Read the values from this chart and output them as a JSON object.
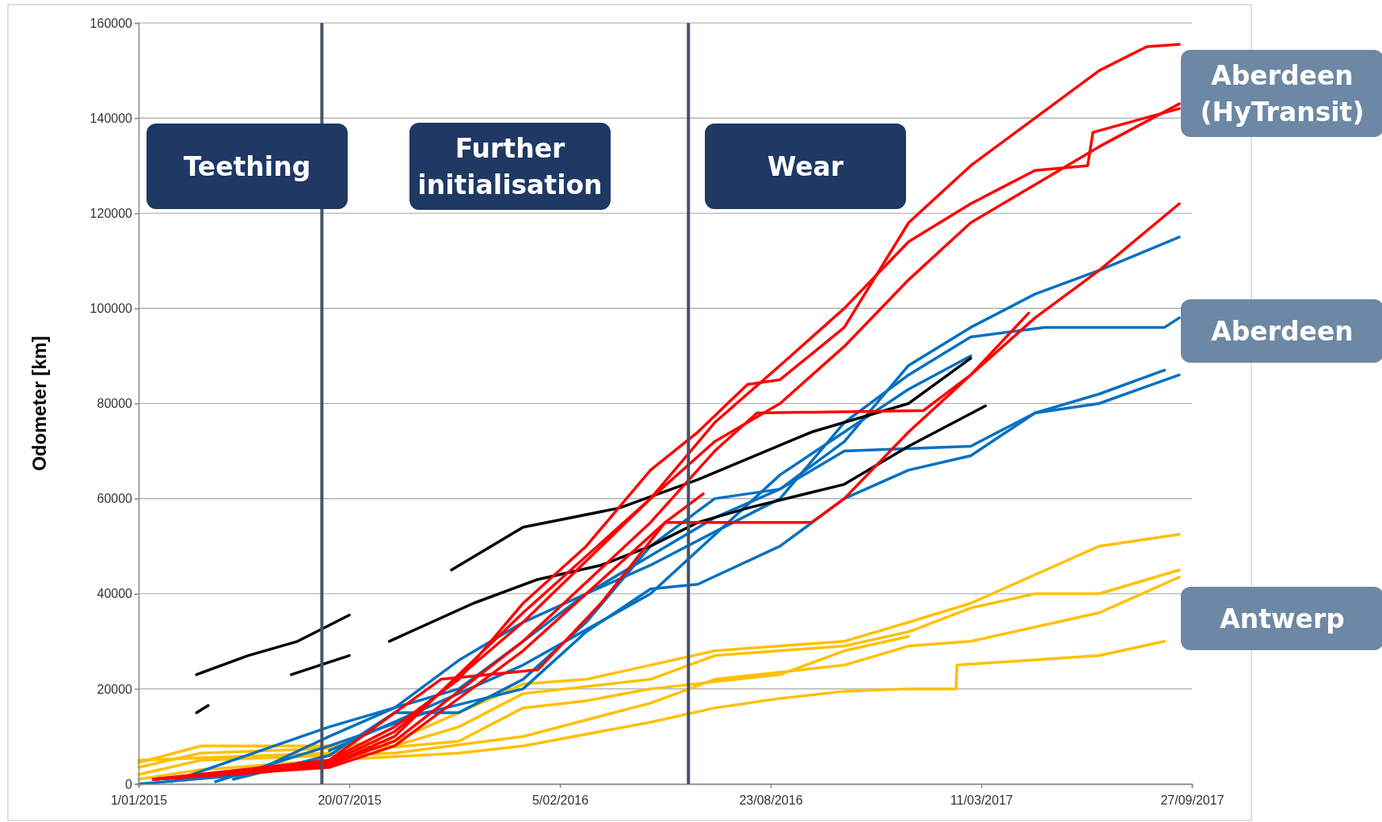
{
  "chart_data": {
    "type": "line",
    "ylabel": "Odometer [km]",
    "xlim": [
      "2015-01-01",
      "2017-09-27"
    ],
    "xticks": [
      {
        "value": "2015-01-01",
        "label": "1/01/2015"
      },
      {
        "value": "2015-07-20",
        "label": "20/07/2015"
      },
      {
        "value": "2016-02-05",
        "label": "5/02/2016"
      },
      {
        "value": "2016-08-23",
        "label": "23/08/2016"
      },
      {
        "value": "2017-03-11",
        "label": "11/03/2017"
      },
      {
        "value": "2017-09-27",
        "label": "27/09/2017"
      }
    ],
    "ylim": [
      0,
      160000
    ],
    "yticks": [
      0,
      20000,
      40000,
      60000,
      80000,
      100000,
      120000,
      140000,
      160000
    ],
    "grid": "y",
    "line_style": "solid",
    "ref_lines": [
      {
        "axis": "x",
        "value": "2015-06-24",
        "color": "#44546a"
      },
      {
        "axis": "x",
        "value": "2016-06-06",
        "color": "#44546a"
      }
    ],
    "annotations": [
      "Teething",
      "Further initialisation",
      "Wear",
      "Aberdeen (HyTransit)",
      "Aberdeen",
      "Antwerp"
    ],
    "series": [
      {
        "color": "#ffc000",
        "x": [
          "2015-01-01",
          "2015-03-01",
          "2015-07-01",
          "2015-09-01",
          "2015-11-01",
          "2016-01-01",
          "2016-03-01",
          "2016-05-01",
          "2016-07-01",
          "2016-11-01",
          "2017-01-01",
          "2017-03-01",
          "2017-05-01",
          "2017-07-01",
          "2017-09-15"
        ],
        "values": [
          4500,
          8000,
          8000,
          9000,
          15000,
          21000,
          22000,
          25000,
          28000,
          30000,
          34000,
          38000,
          44000,
          50000,
          52500
        ]
      },
      {
        "color": "#ffc000",
        "x": [
          "2015-01-01",
          "2015-03-01",
          "2015-09-01",
          "2015-11-01",
          "2016-01-01",
          "2016-05-01",
          "2016-07-01",
          "2016-11-01",
          "2017-01-01",
          "2017-03-01",
          "2017-05-01",
          "2017-07-01",
          "2017-09-15"
        ],
        "values": [
          3500,
          6500,
          8000,
          12000,
          19000,
          22000,
          27000,
          29000,
          32000,
          37000,
          40000,
          40000,
          45000
        ]
      },
      {
        "color": "#ffc000",
        "x": [
          "2015-01-01",
          "2015-03-01",
          "2015-09-01",
          "2016-01-01",
          "2016-05-01",
          "2016-07-01",
          "2016-11-01",
          "2017-01-01",
          "2017-03-01",
          "2017-05-01",
          "2017-07-01",
          "2017-09-15"
        ],
        "values": [
          2000,
          5000,
          6500,
          10000,
          17000,
          22000,
          25000,
          29000,
          30000,
          33000,
          36000,
          43500
        ]
      },
      {
        "color": "#ffc000",
        "x": [
          "2015-01-01",
          "2015-03-01",
          "2015-07-01",
          "2015-11-01",
          "2016-01-01",
          "2016-05-01",
          "2016-07-01",
          "2016-09-01",
          "2016-11-01",
          "2017-01-01",
          "2017-02-15",
          "2017-02-16",
          "2017-07-01",
          "2017-09-01"
        ],
        "values": [
          1000,
          3000,
          5000,
          6500,
          8000,
          13000,
          16000,
          18000,
          19500,
          20000,
          20000,
          25000,
          27000,
          30000
        ]
      },
      {
        "color": "#ffc000",
        "x": [
          "2015-01-01",
          "2015-07-01",
          "2015-11-01",
          "2016-01-01",
          "2016-03-01",
          "2016-05-01",
          "2016-07-01",
          "2016-09-01",
          "2016-11-01",
          "2017-01-01"
        ],
        "values": [
          5000,
          6500,
          9000,
          16000,
          17500,
          20000,
          21500,
          23000,
          28000,
          31000
        ]
      },
      {
        "color": "#0070c0",
        "x": [
          "2015-01-01",
          "2015-04-15",
          "2015-07-01",
          "2015-09-01",
          "2015-11-01",
          "2016-01-01",
          "2016-03-01",
          "2016-05-01",
          "2016-07-01",
          "2016-09-01",
          "2016-11-01",
          "2017-01-01",
          "2017-03-01",
          "2017-05-01",
          "2017-07-01",
          "2017-09-15"
        ],
        "values": [
          0,
          2000,
          10000,
          16000,
          26000,
          34000,
          40000,
          48000,
          56000,
          62000,
          72000,
          88000,
          96000,
          103000,
          108000,
          115000
        ]
      },
      {
        "color": "#0070c0",
        "x": [
          "2015-02-01",
          "2015-07-01",
          "2015-11-01",
          "2016-01-01",
          "2016-03-01",
          "2016-05-01",
          "2016-07-01",
          "2016-09-01",
          "2016-11-01",
          "2017-01-01",
          "2017-03-01",
          "2017-05-10",
          "2017-09-01",
          "2017-09-15"
        ],
        "values": [
          500,
          12000,
          20000,
          30000,
          40000,
          46000,
          53000,
          60000,
          76000,
          86000,
          94000,
          96000,
          96000,
          98000
        ]
      },
      {
        "color": "#0070c0",
        "x": [
          "2015-03-15",
          "2015-07-01",
          "2015-10-01",
          "2016-01-01",
          "2016-03-01",
          "2016-05-01",
          "2016-06-15",
          "2016-09-01",
          "2016-11-01",
          "2017-01-01",
          "2017-03-01",
          "2017-05-01",
          "2017-07-01",
          "2017-09-15"
        ],
        "values": [
          500,
          8000,
          15000,
          20000,
          32000,
          41000,
          42000,
          50000,
          60000,
          66000,
          69000,
          78000,
          80000,
          86000
        ]
      },
      {
        "color": "#0070c0",
        "x": [
          "2015-04-01",
          "2015-07-01",
          "2015-09-01",
          "2015-11-01",
          "2016-01-01",
          "2016-03-01",
          "2016-05-01",
          "2016-07-01",
          "2016-09-01",
          "2016-11-01",
          "2017-03-01",
          "2017-05-01",
          "2017-07-01",
          "2017-09-01"
        ],
        "values": [
          1000,
          6000,
          15000,
          15000,
          22000,
          34000,
          50000,
          60000,
          62000,
          70000,
          71000,
          78000,
          82000,
          87000
        ]
      },
      {
        "color": "#0070c0",
        "x": [
          "2015-07-01",
          "2016-01-01",
          "2016-05-01",
          "2016-09-01",
          "2016-11-01",
          "2017-01-01",
          "2017-03-01"
        ],
        "values": [
          7000,
          25000,
          40000,
          65000,
          74000,
          83000,
          90000
        ]
      },
      {
        "color": "#000000",
        "x": [
          "2015-02-25",
          "2015-04-15",
          "2015-06-01",
          "2015-07-20"
        ],
        "values": [
          23000,
          27000,
          30000,
          35500
        ]
      },
      {
        "color": "#000000",
        "x": [
          "2015-02-25",
          "2015-03-08"
        ],
        "values": [
          15000,
          16500
        ]
      },
      {
        "color": "#000000",
        "x": [
          "2015-05-26",
          "2015-07-20"
        ],
        "values": [
          23000,
          27000
        ]
      },
      {
        "color": "#000000",
        "x": [
          "2015-08-27",
          "2015-11-15",
          "2016-01-15",
          "2016-03-15",
          "2016-05-01",
          "2016-06-15",
          "2016-08-01",
          "2016-11-01",
          "2017-01-01",
          "2017-03-15"
        ],
        "values": [
          30000,
          38000,
          43000,
          46000,
          50000,
          55000,
          58000,
          63000,
          71000,
          79500
        ]
      },
      {
        "color": "#000000",
        "x": [
          "2015-10-25",
          "2016-01-01",
          "2016-04-01",
          "2016-06-15",
          "2016-10-01",
          "2017-01-01",
          "2017-03-01"
        ],
        "values": [
          45000,
          54000,
          58000,
          64000,
          74000,
          80000,
          89500
        ]
      },
      {
        "color": "#ff0000",
        "x": [
          "2015-01-15",
          "2015-05-01",
          "2015-07-01",
          "2015-09-01",
          "2015-11-01",
          "2016-01-01",
          "2016-03-01",
          "2016-05-01",
          "2016-06-15",
          "2016-08-01",
          "2016-09-01",
          "2016-11-01",
          "2017-01-01",
          "2017-03-01",
          "2017-05-01",
          "2017-07-01",
          "2017-08-15",
          "2017-09-15"
        ],
        "values": [
          1000,
          2500,
          5000,
          12000,
          22000,
          38000,
          50000,
          66000,
          74000,
          84000,
          85000,
          96000,
          118000,
          130000,
          140000,
          150000,
          155000,
          155500
        ]
      },
      {
        "color": "#ff0000",
        "x": [
          "2015-01-15",
          "2015-07-01",
          "2015-09-01",
          "2016-01-01",
          "2016-05-01",
          "2016-07-01",
          "2016-09-01",
          "2016-11-01",
          "2017-01-01",
          "2017-03-01",
          "2017-05-01",
          "2017-07-01",
          "2017-09-15"
        ],
        "values": [
          1000,
          4500,
          11000,
          34000,
          60000,
          72000,
          80000,
          92000,
          106000,
          118000,
          126000,
          134000,
          143000
        ]
      },
      {
        "color": "#ff0000",
        "x": [
          "2015-01-15",
          "2015-07-01",
          "2015-09-01",
          "2016-01-01",
          "2016-05-01",
          "2016-07-01",
          "2016-09-01",
          "2016-11-01",
          "2017-01-01",
          "2017-03-01",
          "2017-05-01",
          "2017-06-20",
          "2017-06-25",
          "2017-09-15"
        ],
        "values": [
          1000,
          4000,
          10000,
          36000,
          60000,
          76000,
          88000,
          100000,
          114000,
          122000,
          129000,
          130000,
          137000,
          142000
        ]
      },
      {
        "color": "#ff0000",
        "x": [
          "2015-01-15",
          "2015-07-01",
          "2015-09-01",
          "2016-01-01",
          "2016-05-01",
          "2016-07-01",
          "2016-08-10",
          "2017-01-15",
          "2017-03-01",
          "2017-04-25"
        ],
        "values": [
          1000,
          4000,
          9000,
          30000,
          55000,
          70000,
          78000,
          78500,
          86000,
          99000
        ]
      },
      {
        "color": "#ff0000",
        "x": [
          "2015-01-15",
          "2015-07-01",
          "2015-09-01",
          "2016-01-01",
          "2016-05-15",
          "2016-10-01",
          "2016-11-01",
          "2017-01-01",
          "2017-03-01",
          "2017-05-01",
          "2017-07-01",
          "2017-09-15"
        ],
        "values": [
          1000,
          3500,
          8000,
          28000,
          55000,
          55000,
          60000,
          74000,
          86000,
          98000,
          108000,
          122000
        ]
      },
      {
        "color": "#ff0000",
        "x": [
          "2015-01-15",
          "2015-07-01",
          "2015-10-15",
          "2016-01-15",
          "2016-03-15",
          "2016-05-15",
          "2016-06-20"
        ],
        "values": [
          1000,
          5000,
          22000,
          24000,
          38000,
          55000,
          61000
        ]
      }
    ]
  }
}
